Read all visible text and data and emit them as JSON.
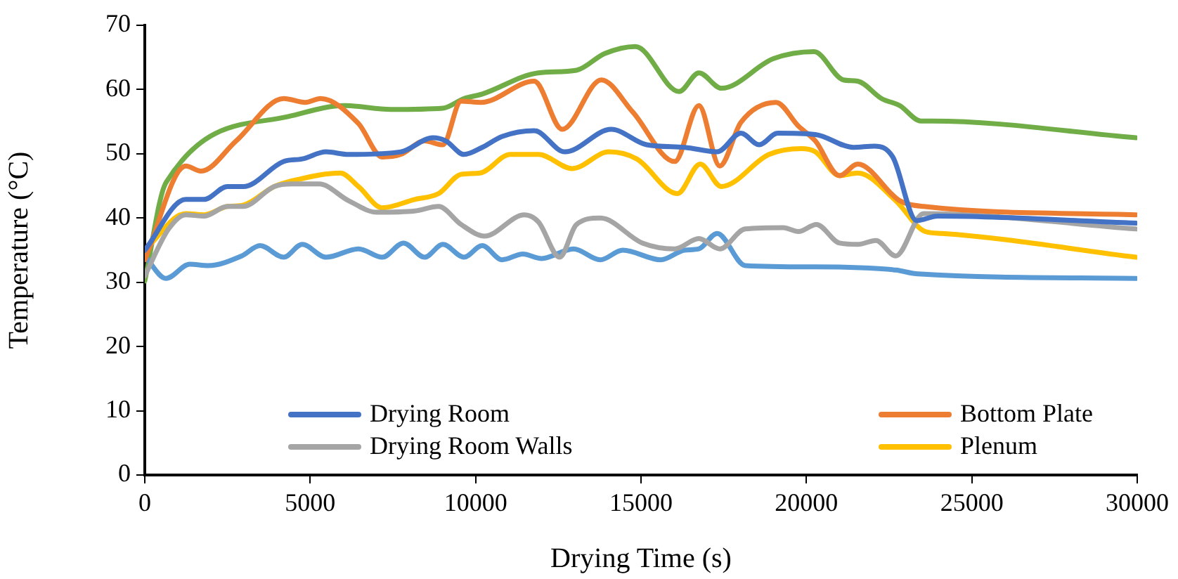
{
  "chart_data": {
    "type": "line",
    "xlabel": "Drying Time (s)",
    "ylabel": "Temperature (°C)",
    "xlim": [
      0,
      30000
    ],
    "xticks": [
      0,
      5000,
      10000,
      15000,
      20000,
      25000,
      30000
    ],
    "ylim": [
      0,
      70
    ],
    "yticks": [
      0,
      10,
      20,
      30,
      40,
      50,
      60,
      70
    ],
    "grid": false,
    "legend": "bottom",
    "marker": "none",
    "line_style": "solid",
    "series": [
      {
        "name": "Drying Room",
        "color": "#4472c4",
        "x": [
          0,
          1240,
          1790,
          2500,
          2975,
          4200,
          4760,
          5480,
          6160,
          7735,
          8710,
          9100,
          9650,
          10200,
          10800,
          11770,
          12700,
          14100,
          15170,
          16320,
          17300,
          18020,
          18570,
          19130,
          20270,
          21420,
          22060,
          22610,
          23330,
          23970,
          29960
        ],
        "values": [
          35,
          42.9,
          42.9,
          44.9,
          44.9,
          48.8,
          49.2,
          50.3,
          49.9,
          50.3,
          52.5,
          52,
          49.9,
          51,
          52.7,
          53.6,
          50.3,
          53.8,
          51.4,
          51,
          50.3,
          53.2,
          51.4,
          53.2,
          53,
          51,
          51.2,
          49.5,
          39.6,
          40.3,
          39.2
        ]
      },
      {
        "name": "Bottom Plate",
        "color": "#ed7d31",
        "x": [
          0,
          1240,
          1700,
          2760,
          4200,
          4850,
          5310,
          6460,
          7180,
          7735,
          8460,
          9010,
          9560,
          10160,
          11770,
          12620,
          13800,
          14750,
          16020,
          16750,
          17380,
          18020,
          19080,
          19760,
          20270,
          21000,
          21550,
          22820,
          23540,
          29960
        ],
        "values": [
          33.5,
          48.1,
          47.3,
          52,
          58.6,
          58,
          58.6,
          54.7,
          49.5,
          49.9,
          52,
          51.4,
          58.2,
          58,
          61.3,
          53.8,
          61.5,
          56.5,
          48.8,
          57.5,
          48.1,
          54.9,
          58,
          54.3,
          52,
          46.6,
          48.4,
          42.7,
          41.8,
          40.5
        ]
      },
      {
        "name": "Drying Room Walls",
        "color": "#a5a5a5",
        "x": [
          0,
          720,
          1240,
          1790,
          2500,
          2975,
          3910,
          4460,
          5270,
          6160,
          7010,
          8160,
          8880,
          9560,
          10270,
          11475,
          11900,
          12540,
          13050,
          13770,
          15045,
          16020,
          16750,
          17380,
          18150,
          19300,
          19760,
          20300,
          21000,
          21550,
          22100,
          22700,
          23540,
          29960
        ],
        "values": [
          31,
          38.3,
          40.5,
          40.3,
          41.8,
          41.8,
          44.9,
          45.3,
          45.3,
          42.7,
          40.9,
          41.1,
          41.8,
          39,
          37.2,
          40.5,
          39.4,
          33.9,
          39,
          40,
          36.1,
          35.2,
          36.8,
          35.2,
          38.3,
          38.5,
          37.9,
          39,
          36.1,
          35.9,
          36.5,
          34.1,
          40.7,
          38.3
        ]
      },
      {
        "name": "Plenum",
        "color": "#ffc000",
        "x": [
          0,
          1240,
          1790,
          2500,
          2975,
          3910,
          4630,
          5910,
          6460,
          7180,
          8160,
          8880,
          9560,
          10130,
          11050,
          11900,
          12920,
          14030,
          14870,
          16100,
          16790,
          17430,
          18870,
          19850,
          20270,
          21000,
          21550,
          22700,
          23590,
          24100,
          29960
        ],
        "values": [
          35,
          40.7,
          40.5,
          41.8,
          42,
          44.9,
          46,
          47,
          44.9,
          41.6,
          42.9,
          43.8,
          46.8,
          47,
          49.9,
          49.9,
          47.7,
          50.3,
          49.2,
          43.8,
          48.4,
          44.9,
          49.9,
          50.8,
          50.3,
          46.6,
          47,
          42.7,
          37.9,
          37.6,
          33.9
        ]
      },
      {
        "color": "#5b9bd5",
        "x": [
          0,
          640,
          1360,
          1910,
          2930,
          3485,
          4200,
          4760,
          5480,
          6460,
          7180,
          7820,
          8460,
          9010,
          9650,
          10200,
          10800,
          11430,
          11990,
          12960,
          13770,
          14450,
          15600,
          16320,
          16750,
          17300,
          18150,
          20270,
          22700,
          23370,
          29960
        ],
        "values": [
          34.1,
          30.6,
          32.8,
          32.6,
          34.1,
          35.7,
          33.9,
          35.9,
          33.9,
          35.2,
          33.9,
          36.1,
          33.9,
          35.9,
          33.9,
          35.7,
          33.5,
          34.4,
          33.7,
          35.2,
          33.5,
          35,
          33.5,
          35,
          35.2,
          37.6,
          32.6,
          32.4,
          31.9,
          31.3,
          30.6
        ]
      },
      {
        "color": "#70ad47",
        "x": [
          0,
          640,
          4335,
          6035,
          7440,
          9010,
          9650,
          10200,
          11900,
          13050,
          13900,
          14830,
          16150,
          16750,
          17430,
          19000,
          20230,
          21120,
          21550,
          22270,
          22820,
          23460,
          23800,
          29960
        ],
        "values": [
          30.2,
          45.5,
          55.8,
          57.5,
          56.9,
          57.1,
          58.6,
          59.3,
          62.6,
          63,
          65.6,
          66.7,
          59.7,
          62.6,
          60.2,
          64.8,
          65.9,
          61.5,
          61.3,
          58.6,
          57.5,
          55.1,
          55.1,
          52.5
        ]
      }
    ]
  }
}
